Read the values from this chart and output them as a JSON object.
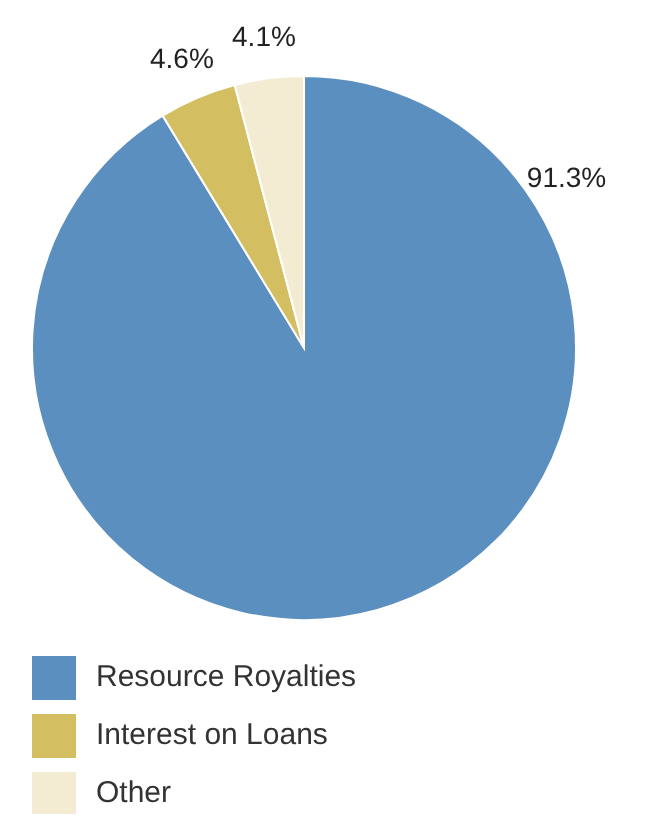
{
  "chart_data": {
    "type": "pie",
    "categories": [
      "Resource Royalties",
      "Interest on Loans",
      "Other"
    ],
    "values": [
      91.3,
      4.6,
      4.1
    ],
    "colors": [
      "#5b8fbf",
      "#d4be62",
      "#f3ebd2"
    ],
    "value_labels": [
      "91.3%",
      "4.6%",
      "4.1%"
    ],
    "legend": "bottom"
  }
}
